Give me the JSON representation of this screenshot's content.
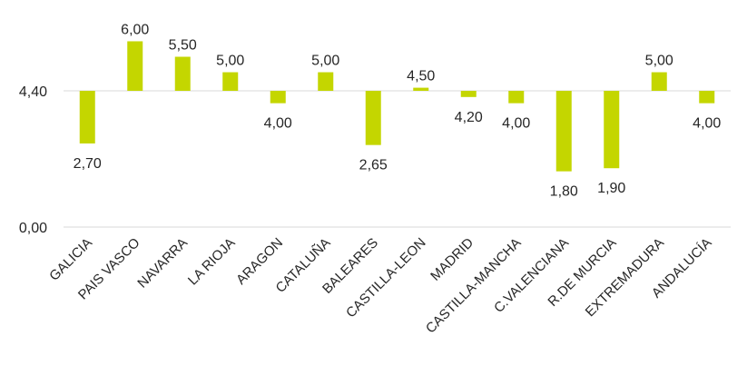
{
  "chart_data": {
    "type": "bar",
    "baseline": 4.4,
    "categories": [
      "GALICIA",
      "PAIS VASCO",
      "NAVARRA",
      "LA RIOJA",
      "ARAGON",
      "CATALUÑA",
      "BALEARES",
      "CASTILLA-LEON",
      "MADRID",
      "CASTILLA-MANCHA",
      "C.VALENCIANA",
      "R.DE MURCIA",
      "EXTREMADURA",
      "ANDALUCÍA"
    ],
    "values": [
      2.7,
      6.0,
      5.5,
      5.0,
      4.0,
      5.0,
      2.65,
      4.5,
      4.2,
      4.0,
      1.8,
      1.9,
      5.0,
      4.0
    ],
    "value_labels": [
      "2,70",
      "6,00",
      "5,50",
      "5,00",
      "4,00",
      "5,00",
      "2,65",
      "4,50",
      "4,20",
      "4,00",
      "1,80",
      "1,90",
      "5,00",
      "4,00"
    ],
    "y_ticks": [
      0.0,
      4.4
    ],
    "y_tick_labels": [
      "0,00",
      "4,40"
    ],
    "grid": true,
    "bar_color": "#c4d600",
    "grid_color": "#d9d9d9",
    "text_color": "#262626"
  }
}
